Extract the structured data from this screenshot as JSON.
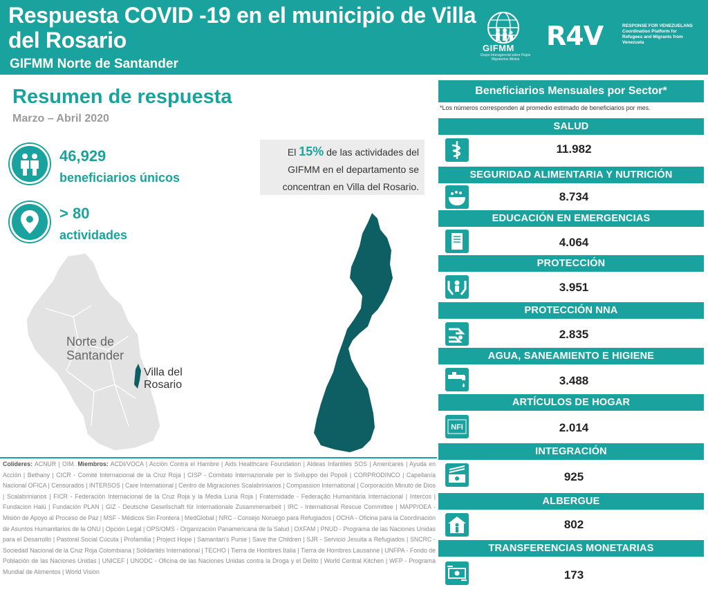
{
  "header": {
    "title": "Respuesta COVID -19 en el municipio de Villa del Rosario",
    "subtitle": "GIFMM Norte de Santander",
    "gifmm_logo_text": "GIFMM",
    "gifmm_logo_small": "Grupo Interagencial sobre Flujos Migratorios Mixtos",
    "r4v_logo_text": "R4V",
    "r4v_side_text": "RESPONSE FOR VENEZUELANS Coordination Platform for Refugees and Migrants from Venezuela"
  },
  "summary": {
    "title": "Resumen de respuesta",
    "period": "Marzo – Abril 2020",
    "beneficiaries_value": "46,929",
    "beneficiaries_label": "beneficiarios únicos",
    "activities_value": "> 80",
    "activities_label": "actividades"
  },
  "callout": {
    "prefix": "El",
    "percent": "15%",
    "text": "de las actividades del GIFMM en el departamento se concentran en Villa del Rosario."
  },
  "map": {
    "department_label": "Norte de Santander",
    "municipality_label": "Villa del Rosario"
  },
  "partners": {
    "leads_label": "Colíderes:",
    "leads": "ACNUR | OIM.",
    "members_label": "Miembros:",
    "members": "ACDI/VOCA | Acción Contra el Hambre | Aids Healthcare Foundation | Aldeas Infantiles SOS | Americares | Ayuda en Acción | Bethany | CICR - Comité Internacional de la Cruz Roja | CISP - Comitato Internazionale per lo Sviluppo dei Popoli | CORPRODINCO | Capellanía Nacional OFICA | Censurados | INTERSOS | Care International | Centro de Migraciones Scalabrinianos | Compassion International | Corporación Minuto de Dios | Scalabrinianos | FICR - Federación Internacional de la Cruz Roja y la Media Luna Roja | Fraternidade - Federação Humanitária Internacional | Intercos | Fundacion Halü | Fundación PLAN | GIZ - Deutsche Gesellschaft für Internationale Zusammenarbeit | IRC - International Rescue Committee | MAPP/OEA - Misión de Apoyo al Proceso de Paz | MSF - Médicos Sin Frontera | MedGlobal | NRC - Consejo Noruego para Refugiados | OCHA - Oficina para la Coordinación de Asuntos Humanitarios de la ONU | Opción Legal | OPS/OMS - Organización Panamericana de la Salud | OXFAM | PNUD - Programa de las Naciones Unidas para el Desarrollo | Pastoral Social Cúcuta | Profamilia | Project Hope | Samaritan's Purse | Save the Children | SJR - Servicio Jesuita a Refugiados | SNCRC - Sociedad Nacional de la Cruz Roja Colombiana | Solidarités International | TECHO | Tierra de Hombres Italia | Tierra de Hombres Lausanne | UNFPA - Fondo de Población de las Naciones Unidas | UNICEF | UNODC - Oficina de las Naciones Unidas contra la Droga y el Delito | World Central Kitchen | WFP - Programa Mundial de Alimentos | World Vision"
  },
  "right_panel": {
    "title": "Beneficiarios Mensuales por Sector*",
    "note": "*Los números corresponden al promedio estimado de beneficiarios por mes.",
    "sectors": [
      {
        "name": "SALUD",
        "value": "11.982",
        "icon": "health-icon"
      },
      {
        "name": "SEGURIDAD ALIMENTARIA Y NUTRICIÓN",
        "value": "8.734",
        "icon": "food-icon"
      },
      {
        "name": "EDUCACIÓN EN EMERGENCIAS",
        "value": "4.064",
        "icon": "education-icon"
      },
      {
        "name": "PROTECCIÓN",
        "value": "3.951",
        "icon": "protection-icon"
      },
      {
        "name": "PROTECCIÓN NNA",
        "value": "2.835",
        "icon": "child-protection-icon"
      },
      {
        "name": "AGUA, SANEAMIENTO E HIGIENE",
        "value": "3.488",
        "icon": "water-tap-icon"
      },
      {
        "name": "ARTÍCULOS DE HOGAR",
        "value": "2.014",
        "icon": "nfi-icon",
        "icon_text": "NFI"
      },
      {
        "name": "INTEGRACIÓN",
        "value": "925",
        "icon": "integration-icon"
      },
      {
        "name": "ALBERGUE",
        "value": "802",
        "icon": "shelter-icon"
      },
      {
        "name": "TRANSFERENCIAS MONETARIAS",
        "value": "173",
        "icon": "cash-transfer-icon"
      }
    ]
  },
  "colors": {
    "primary": "#1aa39e",
    "map_dark": "#0d5f63",
    "map_light": "#e3e3e3",
    "callout_bg": "#ececec"
  }
}
